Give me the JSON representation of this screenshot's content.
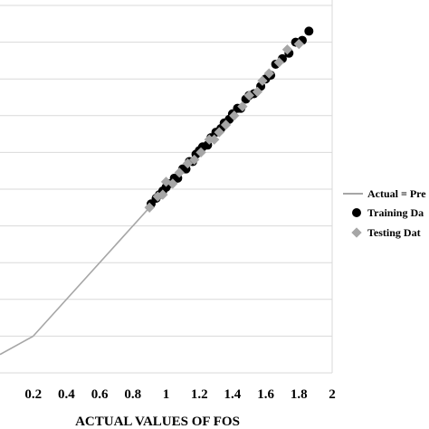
{
  "chart_data": {
    "type": "scatter",
    "xlabel": "ACTUAL VALUES OF  FOS",
    "ylabel": "",
    "xlim": [
      0,
      2
    ],
    "ylim": [
      0,
      2
    ],
    "grid": "horizontal",
    "legend_placement": "right",
    "x_ticks": [
      "0.2",
      "0.4",
      "0.6",
      "0.8",
      "1",
      "1.2",
      "1.4",
      "1.6",
      "1.8",
      "2"
    ],
    "colors": {
      "line": "#a6a6a6",
      "training": "#000000",
      "testing": "#a6a6a6",
      "grid": "#d9d9d9"
    },
    "series": [
      {
        "name": "Actual = Pre",
        "kind": "line",
        "x": [
          0.2,
          0.9
        ],
        "y": [
          0.2,
          0.9
        ]
      },
      {
        "name": "Training Da",
        "kind": "points",
        "marker": "circle",
        "x": [
          0.91,
          0.94,
          0.96,
          0.98,
          1.0,
          1.02,
          1.05,
          1.07,
          1.1,
          1.12,
          1.14,
          1.16,
          1.18,
          1.2,
          1.22,
          1.25,
          1.27,
          1.3,
          1.33,
          1.35,
          1.38,
          1.4,
          1.43,
          1.45,
          1.48,
          1.5,
          1.53,
          1.57,
          1.6,
          1.63,
          1.66,
          1.7,
          1.74,
          1.78,
          1.82,
          1.86
        ],
        "y": [
          0.92,
          0.95,
          0.97,
          0.99,
          1.01,
          1.03,
          1.06,
          1.06,
          1.11,
          1.11,
          1.15,
          1.15,
          1.19,
          1.21,
          1.23,
          1.24,
          1.28,
          1.31,
          1.33,
          1.36,
          1.38,
          1.41,
          1.44,
          1.44,
          1.49,
          1.51,
          1.52,
          1.56,
          1.6,
          1.62,
          1.68,
          1.71,
          1.74,
          1.8,
          1.81,
          1.86
        ]
      },
      {
        "name": "Testing Dat",
        "kind": "points",
        "marker": "diamond",
        "x": [
          0.9,
          0.95,
          0.98,
          1.0,
          1.04,
          1.08,
          1.13,
          1.17,
          1.21,
          1.26,
          1.29,
          1.32,
          1.36,
          1.41,
          1.46,
          1.5,
          1.55,
          1.58,
          1.62,
          1.68,
          1.73,
          1.8
        ],
        "y": [
          0.9,
          0.96,
          0.97,
          1.04,
          1.03,
          1.09,
          1.14,
          1.16,
          1.2,
          1.27,
          1.27,
          1.31,
          1.35,
          1.4,
          1.45,
          1.51,
          1.53,
          1.59,
          1.63,
          1.69,
          1.76,
          1.79
        ]
      }
    ]
  }
}
